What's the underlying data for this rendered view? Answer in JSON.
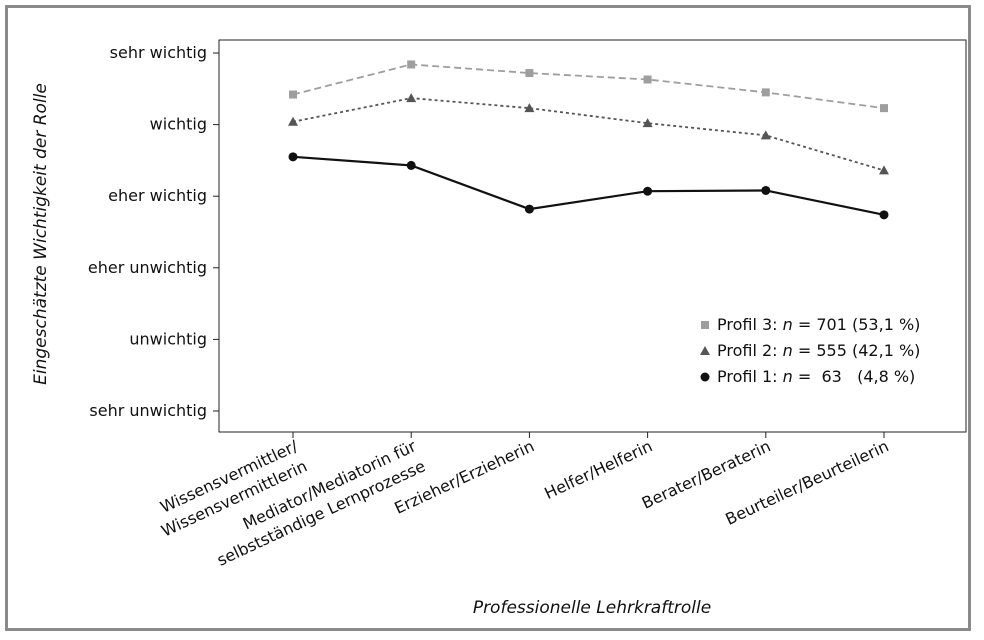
{
  "chart_data": {
    "type": "line",
    "xlabel": "Professionelle Lehrkraftrolle",
    "ylabel": "Eingeschätzte Wichtigkeit der Rolle",
    "y_ticks": [
      "sehr unwichtig",
      "unwichtig",
      "eher unwichtig",
      "eher wichtig",
      "wichtig",
      "sehr wichtig"
    ],
    "ylim": [
      1,
      6
    ],
    "categories": [
      [
        "Wissensvermittler/",
        "Wissensvermittlerin"
      ],
      [
        "Mediator/Mediatorin für",
        "selbstständige Lernprozesse"
      ],
      [
        "Erzieher/Erzieherin"
      ],
      [
        "Helfer/Helferin"
      ],
      [
        "Berater/Beraterin"
      ],
      [
        "Beurteiler/Beurteilerin"
      ]
    ],
    "legend_position": "bottom-right",
    "series": [
      {
        "name_prefix": "Profil 3: ",
        "n_label": "n",
        "name_suffix": " = 701 (53,1 %)",
        "marker": "square",
        "line": "dashed",
        "color": "#9e9e9e",
        "values": [
          5.42,
          5.84,
          5.72,
          5.63,
          5.45,
          5.23
        ]
      },
      {
        "name_prefix": "Profil 2: ",
        "n_label": "n",
        "name_suffix": " = 555 (42,1 %)",
        "marker": "triangle",
        "line": "dotted",
        "color": "#555555",
        "values": [
          5.04,
          5.37,
          5.23,
          5.02,
          4.85,
          4.36
        ]
      },
      {
        "name_prefix": "Profil 1: ",
        "n_label": "n",
        "name_suffix": " =  63   (4,8 %)",
        "marker": "circle",
        "line": "solid",
        "color": "#111111",
        "values": [
          4.55,
          4.43,
          3.82,
          4.07,
          4.08,
          3.74
        ]
      }
    ]
  }
}
